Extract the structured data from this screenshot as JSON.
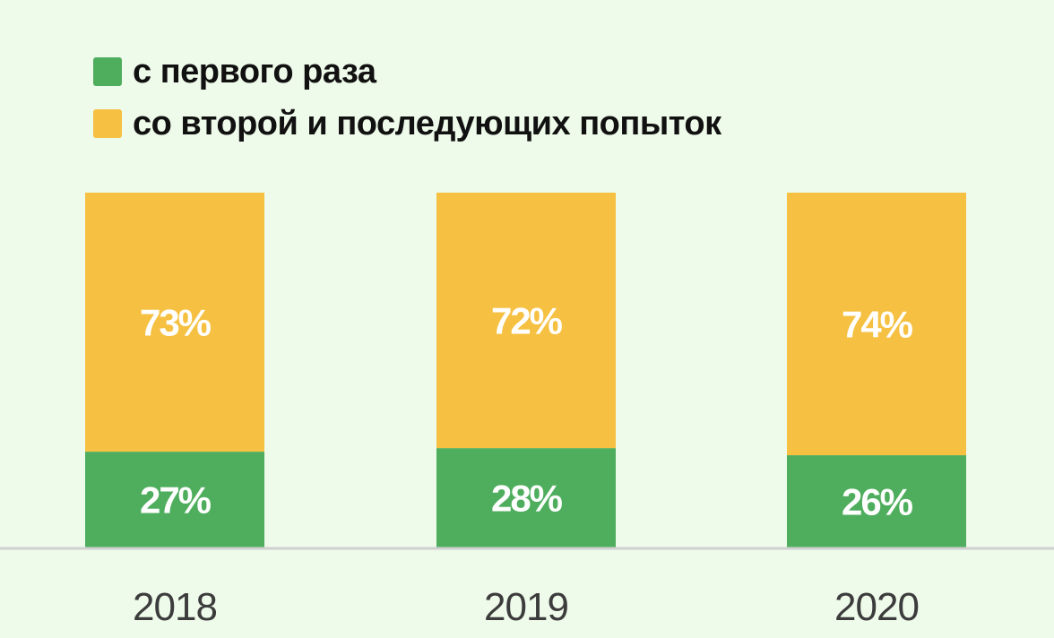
{
  "colors": {
    "background": "#eefaea",
    "first_attempt": "#4fae5e",
    "later_attempts": "#f6c142",
    "baseline": "#d0d0d0"
  },
  "legend": {
    "items": [
      {
        "label": "с первого раза",
        "color": "#4fae5e"
      },
      {
        "label": "со второй и последующих попыток",
        "color": "#f6c142"
      }
    ]
  },
  "chart_data": {
    "type": "bar",
    "stacked": true,
    "categories": [
      "2018",
      "2019",
      "2020"
    ],
    "series": [
      {
        "name": "с первого раза",
        "values": [
          27,
          28,
          26
        ],
        "labels": [
          "27%",
          "28%",
          "26%"
        ],
        "color": "#4fae5e"
      },
      {
        "name": "со второй и последующих попыток",
        "values": [
          73,
          72,
          74
        ],
        "labels": [
          "73%",
          "72%",
          "74%"
        ],
        "color": "#f6c142"
      }
    ],
    "ylim": [
      0,
      100
    ],
    "grid": false,
    "legend_position": "top-left",
    "title": "",
    "xlabel": "",
    "ylabel": ""
  }
}
